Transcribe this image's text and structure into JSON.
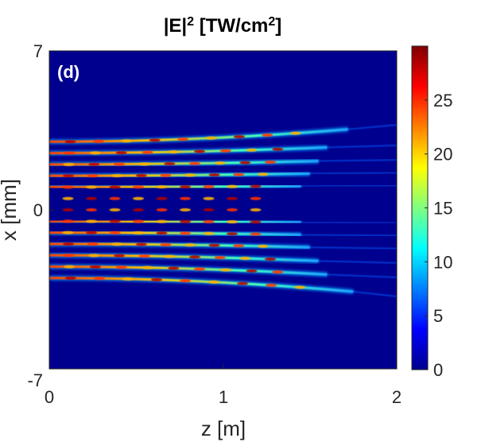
{
  "chart_data": {
    "type": "heatmap",
    "title": "|E|",
    "title_sup": "2",
    "title_rest_1": " [TW/cm",
    "title_sup_2": "2",
    "title_rest_2": "]",
    "panel_label": "(d)",
    "xlabel": "z [m]",
    "ylabel": "x [mm]",
    "xlim": [
      0,
      2
    ],
    "ylim": [
      -7,
      7
    ],
    "x_ticks": [
      "0",
      "1",
      "2"
    ],
    "y_ticks": [
      "7",
      "0",
      "-7"
    ],
    "colorbar_ticks": [
      "0",
      "5",
      "10",
      "15",
      "20",
      "25"
    ],
    "colorbar_range": [
      0,
      30
    ],
    "colormap": "jet",
    "background_color": "#00008F",
    "filaments": [
      {
        "x0": 3.0,
        "z_end": 1.72,
        "x_end": 3.55
      },
      {
        "x0": 2.5,
        "z_end": 1.6,
        "x_end": 2.75
      },
      {
        "x0": 2.0,
        "z_end": 1.55,
        "x_end": 2.15
      },
      {
        "x0": 1.5,
        "z_end": 1.5,
        "x_end": 1.6
      },
      {
        "x0": 1.0,
        "z_end": 1.45,
        "x_end": 1.05
      },
      {
        "x0": 0.5,
        "z_end": 1.45,
        "x_end": 0.5
      },
      {
        "x0": 0.0,
        "z_end": 1.45,
        "x_end": 0.0
      },
      {
        "x0": -0.5,
        "z_end": 1.45,
        "x_end": -0.55
      },
      {
        "x0": -1.0,
        "z_end": 1.45,
        "x_end": -1.1
      },
      {
        "x0": -1.5,
        "z_end": 1.5,
        "x_end": -1.65
      },
      {
        "x0": -2.0,
        "z_end": 1.55,
        "x_end": -2.25
      },
      {
        "x0": -2.5,
        "z_end": 1.6,
        "x_end": -2.85
      },
      {
        "x0": -3.0,
        "z_end": 1.75,
        "x_end": -3.6
      }
    ]
  }
}
